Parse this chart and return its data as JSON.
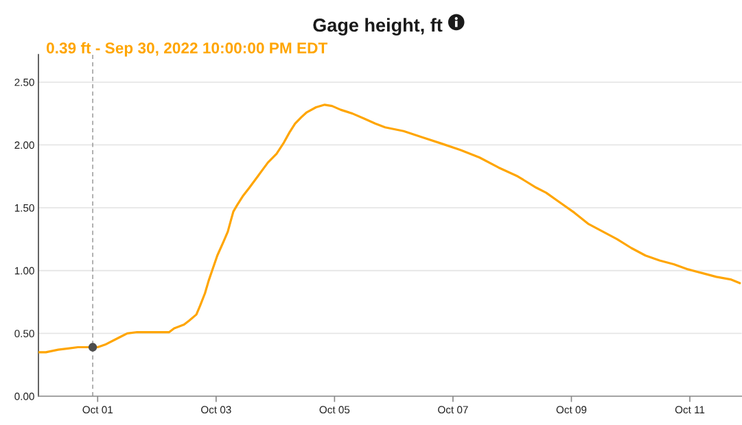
{
  "chart_data": {
    "type": "line",
    "title": "Gage height, ft",
    "series": [
      {
        "color": "#ffa500",
        "x": [
          "2022-09-30T00:00",
          "2022-09-30T03:00",
          "2022-09-30T08:00",
          "2022-09-30T12:00",
          "2022-09-30T16:00",
          "2022-09-30T22:00",
          "2022-10-01T00:00",
          "2022-10-01T03:00",
          "2022-10-01T07:00",
          "2022-10-01T10:00",
          "2022-10-01T12:00",
          "2022-10-01T16:00",
          "2022-10-02T05:00",
          "2022-10-02T07:00",
          "2022-10-02T11:00",
          "2022-10-02T13:00",
          "2022-10-02T16:00",
          "2022-10-02T17:30",
          "2022-10-02T19:30",
          "2022-10-02T21:00",
          "2022-10-02T22:45",
          "2022-10-03T00:30",
          "2022-10-03T03:00",
          "2022-10-03T04:45",
          "2022-10-03T06:00",
          "2022-10-03T07:00",
          "2022-10-03T08:30",
          "2022-10-03T10:45",
          "2022-10-03T13:30",
          "2022-10-03T17:15",
          "2022-10-03T21:00",
          "2022-10-04T00:30",
          "2022-10-04T03:30",
          "2022-10-04T05:45",
          "2022-10-04T08:00",
          "2022-10-04T10:30",
          "2022-10-04T12:45",
          "2022-10-04T16:30",
          "2022-10-04T20:00",
          "2022-10-04T23:00",
          "2022-10-05T02:30",
          "2022-10-05T07:15",
          "2022-10-05T12:00",
          "2022-10-05T16:30",
          "2022-10-05T20:30",
          "2022-10-06T04:00",
          "2022-10-06T11:45",
          "2022-10-06T19:30",
          "2022-10-07T03:00",
          "2022-10-07T10:45",
          "2022-10-07T18:30",
          "2022-10-08T02:15",
          "2022-10-08T09:45",
          "2022-10-08T13:45",
          "2022-10-08T19:30",
          "2022-10-09T01:15",
          "2022-10-09T07:00",
          "2022-10-09T12:45",
          "2022-10-09T18:30",
          "2022-10-10T00:15",
          "2022-10-10T06:00",
          "2022-10-10T11:45",
          "2022-10-10T17:30",
          "2022-10-10T23:15",
          "2022-10-11T05:00",
          "2022-10-11T10:45",
          "2022-10-11T16:30",
          "2022-10-11T20:15"
        ],
        "values": [
          0.35,
          0.35,
          0.37,
          0.38,
          0.39,
          0.39,
          0.39,
          0.41,
          0.45,
          0.48,
          0.5,
          0.51,
          0.51,
          0.54,
          0.57,
          0.6,
          0.65,
          0.72,
          0.82,
          0.92,
          1.02,
          1.12,
          1.23,
          1.31,
          1.4,
          1.47,
          1.52,
          1.59,
          1.66,
          1.76,
          1.86,
          1.93,
          2.02,
          2.1,
          2.17,
          2.22,
          2.26,
          2.3,
          2.32,
          2.31,
          2.28,
          2.25,
          2.21,
          2.17,
          2.14,
          2.11,
          2.06,
          2.01,
          1.96,
          1.9,
          1.82,
          1.75,
          1.66,
          1.62,
          1.54,
          1.46,
          1.37,
          1.31,
          1.25,
          1.18,
          1.12,
          1.08,
          1.05,
          1.01,
          0.98,
          0.95,
          0.93,
          0.9
        ]
      },
      {
        "type": "scatter",
        "color": "#4d4d4d",
        "marker": "circle",
        "x": [
          "2022-09-30T22:00"
        ],
        "values": [
          0.39
        ]
      }
    ],
    "xlim": [
      "2022-09-30T00:00",
      "2022-10-11T21:00"
    ],
    "xticks": [
      {
        "value": "2022-10-01",
        "label": "Oct 01"
      },
      {
        "value": "2022-10-03",
        "label": "Oct 03"
      },
      {
        "value": "2022-10-05",
        "label": "Oct 05"
      },
      {
        "value": "2022-10-07",
        "label": "Oct 07"
      },
      {
        "value": "2022-10-09",
        "label": "Oct 09"
      },
      {
        "value": "2022-10-11",
        "label": "Oct 11"
      }
    ],
    "ylim": [
      0,
      2.72
    ],
    "yticks": [
      {
        "value": 0,
        "label": "0.00"
      },
      {
        "value": 0.5,
        "label": "0.50"
      },
      {
        "value": 1,
        "label": "1.00"
      },
      {
        "value": 1.5,
        "label": "1.50"
      },
      {
        "value": 2,
        "label": "2.00"
      },
      {
        "value": 2.5,
        "label": "2.50"
      }
    ],
    "grid": "y",
    "ref_lines": [
      {
        "axis": "x",
        "value": "2022-09-30T22:00",
        "color": "#999999",
        "line_style": "dashed"
      }
    ],
    "annotations": [
      "0.39 ft - Sep 30, 2022 10:00:00 PM EDT"
    ]
  }
}
